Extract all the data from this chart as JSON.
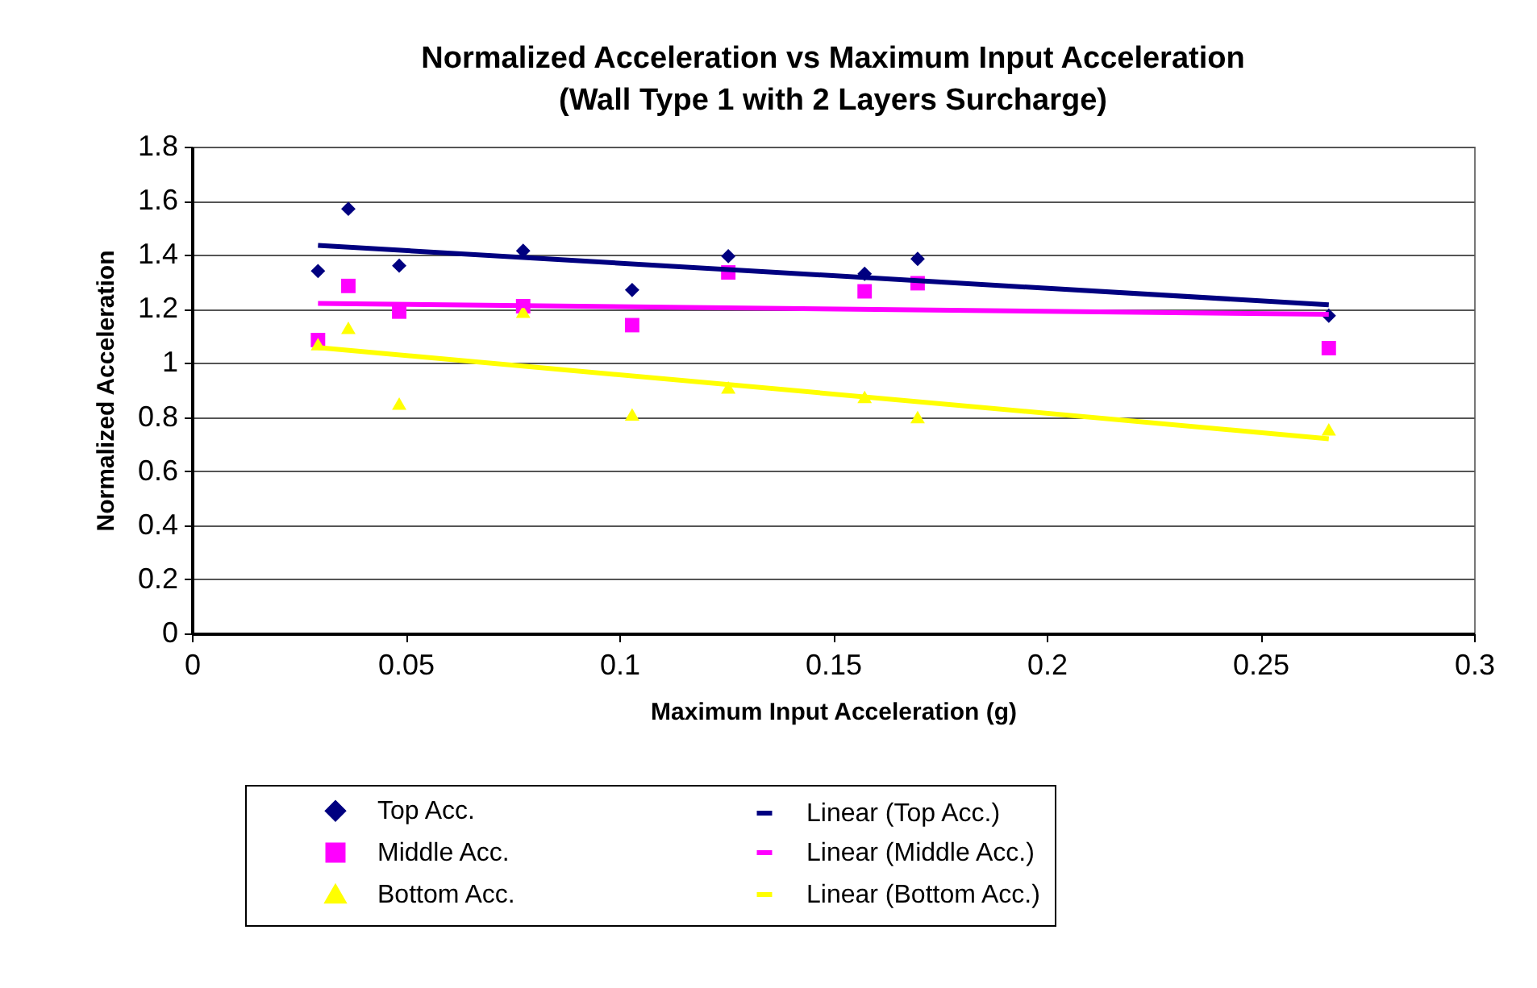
{
  "chart_data": {
    "type": "scatter",
    "title": "Normalized Acceleration vs Maximum Input Acceleration\n(Wall Type 1 with 2 Layers Surcharge)",
    "xlabel": "Maximum Input Acceleration (g)",
    "ylabel": "Normalized Acceleration",
    "x": [
      0.0295,
      0.0366,
      0.0485,
      0.0775,
      0.103,
      0.1255,
      0.1574,
      0.1698,
      0.266
    ],
    "series": [
      {
        "name": "Top Acc.",
        "color": "#000080",
        "marker": "diamond",
        "values": [
          1.34,
          1.57,
          1.36,
          1.415,
          1.27,
          1.395,
          1.33,
          1.385,
          1.175
        ]
      },
      {
        "name": "Middle Acc.",
        "color": "#ff00ff",
        "marker": "square",
        "values": [
          1.085,
          1.285,
          1.19,
          1.21,
          1.14,
          1.335,
          1.265,
          1.295,
          1.055
        ]
      },
      {
        "name": "Bottom Acc.",
        "color": "#ffff00",
        "marker": "triangle",
        "values": [
          1.07,
          1.13,
          0.85,
          1.19,
          0.81,
          0.91,
          0.875,
          0.8,
          0.755
        ]
      },
      {
        "name": "Linear (Top Acc.)",
        "type": "line",
        "color": "#000080",
        "marker": "none",
        "line_style": "solid",
        "values": [
          1.435,
          null,
          null,
          null,
          null,
          null,
          null,
          null,
          1.215
        ]
      },
      {
        "name": "Linear (Middle Acc.)",
        "type": "line",
        "color": "#ff00ff",
        "marker": "none",
        "line_style": "solid",
        "values": [
          1.22,
          null,
          null,
          null,
          null,
          null,
          null,
          null,
          1.18
        ]
      },
      {
        "name": "Linear (Bottom Acc.)",
        "type": "line",
        "color": "#ffff00",
        "marker": "none",
        "line_style": "solid",
        "values": [
          1.057,
          null,
          null,
          null,
          null,
          null,
          null,
          null,
          0.72
        ]
      }
    ],
    "xlim": [
      0,
      0.3
    ],
    "xticks": [
      0,
      0.05,
      0.1,
      0.15,
      0.2,
      0.25,
      0.3
    ],
    "ylim": [
      0,
      1.8
    ],
    "yticks": [
      0,
      0.2,
      0.4,
      0.6,
      0.8,
      1,
      1.2,
      1.4,
      1.6,
      1.8
    ],
    "grid": "y",
    "legend": "bottom"
  }
}
